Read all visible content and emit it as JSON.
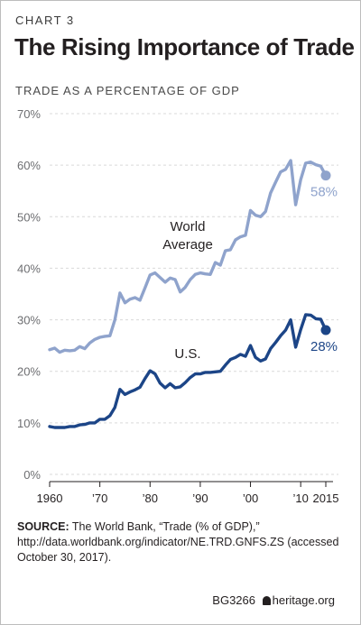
{
  "kicker": "CHART 3",
  "title": "The Rising Importance of Trade",
  "source": {
    "label": "SOURCE:",
    "text": "The World Bank, “Trade (% of GDP),” http://data.worldbank.org/indicator/NE.TRD.GNFS.ZS (accessed October 30, 2017)."
  },
  "footer": {
    "code": "BG3266",
    "brand": "heritage.org"
  },
  "chart_data": {
    "type": "line",
    "title": "TRADE AS A PERCENTAGE OF GDP",
    "xlabel": "",
    "ylabel": "",
    "xlim": [
      1960,
      2015
    ],
    "ylim": [
      0,
      70
    ],
    "y_ticks": [
      {
        "value": 0,
        "label": "0%"
      },
      {
        "value": 10,
        "label": "10%"
      },
      {
        "value": 20,
        "label": "20%"
      },
      {
        "value": 30,
        "label": "30%"
      },
      {
        "value": 40,
        "label": "40%"
      },
      {
        "value": 50,
        "label": "50%"
      },
      {
        "value": 60,
        "label": "60%"
      },
      {
        "value": 70,
        "label": "70%"
      }
    ],
    "x_ticks": [
      {
        "value": 1960,
        "label": "1960"
      },
      {
        "value": 1970,
        "label": "’70"
      },
      {
        "value": 1980,
        "label": "’80"
      },
      {
        "value": 1990,
        "label": "’90"
      },
      {
        "value": 2000,
        "label": "’00"
      },
      {
        "value": 2010,
        "label": "’10"
      },
      {
        "value": 2015,
        "label": "2015"
      }
    ],
    "x": [
      1960,
      1961,
      1962,
      1963,
      1964,
      1965,
      1966,
      1967,
      1968,
      1969,
      1970,
      1971,
      1972,
      1973,
      1974,
      1975,
      1976,
      1977,
      1978,
      1979,
      1980,
      1981,
      1982,
      1983,
      1984,
      1985,
      1986,
      1987,
      1988,
      1989,
      1990,
      1991,
      1992,
      1993,
      1994,
      1995,
      1996,
      1997,
      1998,
      1999,
      2000,
      2001,
      2002,
      2003,
      2004,
      2005,
      2006,
      2007,
      2008,
      2009,
      2010,
      2011,
      2012,
      2013,
      2014,
      2015
    ],
    "series": [
      {
        "name": "World Average",
        "color": "#8fa3cc",
        "end_label": "58%",
        "values": [
          24.2,
          24.5,
          23.7,
          24.1,
          24.0,
          24.1,
          24.8,
          24.4,
          25.5,
          26.2,
          26.6,
          26.8,
          26.9,
          30.0,
          35.2,
          33.3,
          34.0,
          34.3,
          33.8,
          36.2,
          38.7,
          39.1,
          38.2,
          37.3,
          38.1,
          37.8,
          35.4,
          36.3,
          37.8,
          38.8,
          39.1,
          38.9,
          38.8,
          41.1,
          40.6,
          43.4,
          43.6,
          45.5,
          46.1,
          46.4,
          51.2,
          50.3,
          50.0,
          51.0,
          54.6,
          56.7,
          58.7,
          59.2,
          60.9,
          52.3,
          57.2,
          60.4,
          60.6,
          60.1,
          59.8,
          58.0
        ]
      },
      {
        "name": "U.S.",
        "color": "#1c4587",
        "end_label": "28%",
        "values": [
          9.3,
          9.1,
          9.1,
          9.1,
          9.3,
          9.3,
          9.6,
          9.7,
          10.0,
          10.0,
          10.7,
          10.7,
          11.4,
          13.0,
          16.5,
          15.5,
          16.0,
          16.4,
          16.9,
          18.6,
          20.1,
          19.5,
          17.7,
          16.8,
          17.6,
          16.8,
          17.0,
          17.8,
          18.8,
          19.5,
          19.5,
          19.8,
          19.8,
          19.9,
          20.0,
          21.2,
          22.3,
          22.7,
          23.3,
          22.9,
          25.0,
          22.7,
          22.0,
          22.4,
          24.4,
          25.6,
          26.9,
          28.0,
          30.0,
          24.7,
          28.1,
          31.0,
          30.9,
          30.2,
          30.1,
          28.0
        ]
      }
    ],
    "annotations": [
      {
        "series": "World Average",
        "text_lines": [
          "World",
          "Average"
        ]
      },
      {
        "series": "U.S.",
        "text_lines": [
          "U.S."
        ]
      }
    ]
  }
}
